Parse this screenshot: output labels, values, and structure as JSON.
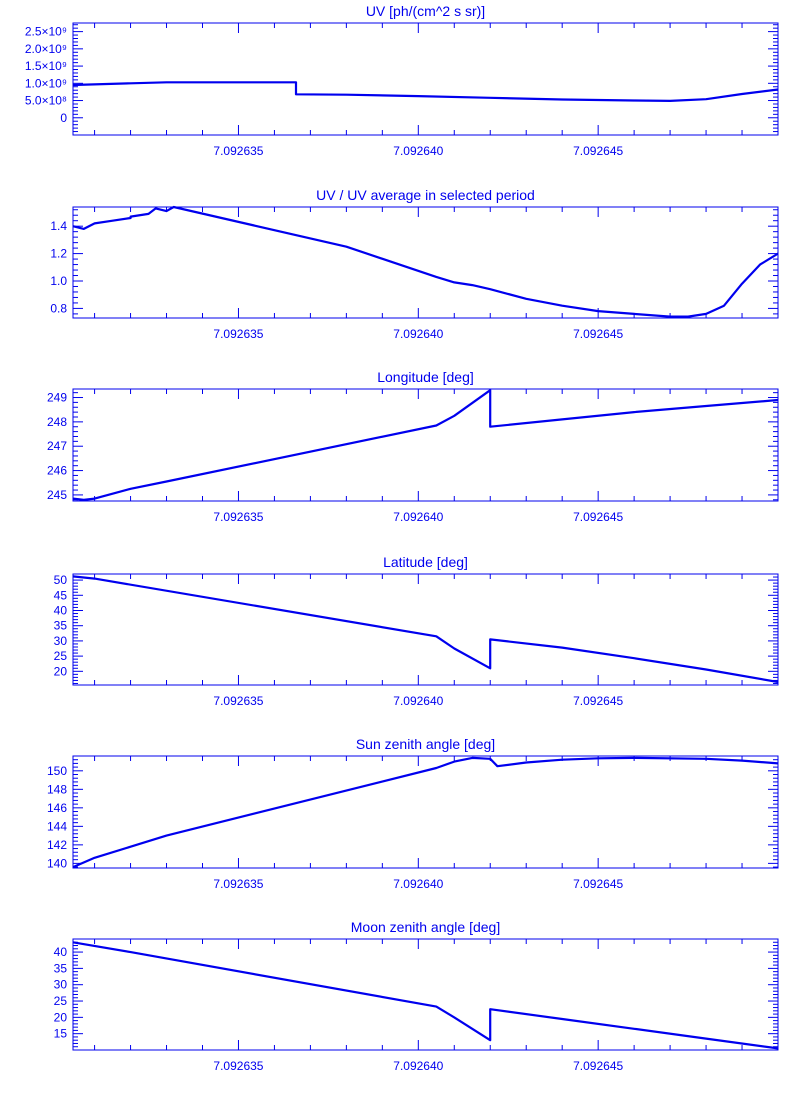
{
  "style": {
    "color": "#0000ee",
    "background": "#ffffff"
  },
  "chart_data": [
    {
      "type": "line",
      "title": "UV [ph/(cm^2 s sr)]",
      "xlim": [
        7.0926304,
        7.09265
      ],
      "ylim": [
        -500000000.0,
        2750000000.0
      ],
      "xticks": [
        7.092635,
        7.09264,
        7.092645
      ],
      "xtick_labels": [
        "7.092635",
        "7.092640",
        "7.092645"
      ],
      "yticks": [
        0,
        500000000.0,
        1000000000.0,
        1500000000.0,
        2000000000.0,
        2500000000.0
      ],
      "ytick_labels": [
        "0",
        "5.0×10⁸",
        "1.0×10⁹",
        "1.5×10⁹",
        "2.0×10⁹",
        "2.5×10⁹"
      ],
      "x": [
        7.0926304,
        7.092632,
        7.092633,
        7.0926366,
        7.0926366,
        7.092638,
        7.09264,
        7.092642,
        7.092644,
        7.092646,
        7.092647,
        7.092648,
        7.092649,
        7.09265
      ],
      "y": [
        950000000.0,
        1000000000.0,
        1030000000.0,
        1030000000.0,
        680000000.0,
        670000000.0,
        630000000.0,
        580000000.0,
        530000000.0,
        500000000.0,
        490000000.0,
        540000000.0,
        690000000.0,
        820000000.0
      ]
    },
    {
      "type": "line",
      "title": "UV / UV average in selected period",
      "xlim": [
        7.0926304,
        7.09265
      ],
      "ylim": [
        0.73,
        1.54
      ],
      "xticks": [
        7.092635,
        7.09264,
        7.092645
      ],
      "xtick_labels": [
        "7.092635",
        "7.092640",
        "7.092645"
      ],
      "yticks": [
        0.8,
        1.0,
        1.2,
        1.4
      ],
      "ytick_labels": [
        "0.8",
        "1.0",
        "1.2",
        "1.4"
      ],
      "x": [
        7.0926304,
        7.0926307,
        7.092631,
        7.0926315,
        7.092632,
        7.092632,
        7.0926325,
        7.0926327,
        7.092633,
        7.0926332,
        7.092638,
        7.0926405,
        7.092641,
        7.0926415,
        7.092642,
        7.092643,
        7.092644,
        7.092645,
        7.092646,
        7.092647,
        7.0926475,
        7.092648,
        7.0926485,
        7.092649,
        7.0926495,
        7.09265
      ],
      "y": [
        1.4,
        1.38,
        1.42,
        1.44,
        1.46,
        1.47,
        1.49,
        1.53,
        1.51,
        1.54,
        1.25,
        1.03,
        0.99,
        0.97,
        0.94,
        0.87,
        0.82,
        0.78,
        0.76,
        0.74,
        0.74,
        0.76,
        0.82,
        0.98,
        1.12,
        1.2
      ]
    },
    {
      "type": "line",
      "title": "Longitude [deg]",
      "xlim": [
        7.0926304,
        7.09265
      ],
      "ylim": [
        244.75,
        249.35
      ],
      "xticks": [
        7.092635,
        7.09264,
        7.092645
      ],
      "xtick_labels": [
        "7.092635",
        "7.092640",
        "7.092645"
      ],
      "yticks": [
        245,
        246,
        247,
        248,
        249
      ],
      "ytick_labels": [
        "245",
        "246",
        "247",
        "248",
        "249"
      ],
      "x": [
        7.0926304,
        7.0926307,
        7.092631,
        7.0926315,
        7.092632,
        7.092633,
        7.0926405,
        7.092641,
        7.092642,
        7.092642,
        7.092644,
        7.092646,
        7.092648,
        7.09265
      ],
      "y": [
        244.85,
        244.8,
        244.85,
        245.05,
        245.25,
        245.55,
        247.85,
        248.25,
        249.3,
        247.8,
        248.1,
        248.4,
        248.65,
        248.9
      ]
    },
    {
      "type": "line",
      "title": "Latitude [deg]",
      "xlim": [
        7.0926304,
        7.09265
      ],
      "ylim": [
        15.5,
        52
      ],
      "xticks": [
        7.092635,
        7.09264,
        7.092645
      ],
      "xtick_labels": [
        "7.092635",
        "7.092640",
        "7.092645"
      ],
      "yticks": [
        20,
        25,
        30,
        35,
        40,
        45,
        50
      ],
      "ytick_labels": [
        "20",
        "25",
        "30",
        "35",
        "40",
        "45",
        "50"
      ],
      "x": [
        7.0926304,
        7.092631,
        7.0926405,
        7.092641,
        7.092642,
        7.092642,
        7.092644,
        7.092646,
        7.092648,
        7.09265
      ],
      "y": [
        51.2,
        50.5,
        31.5,
        27.5,
        21.0,
        30.5,
        27.8,
        24.3,
        20.6,
        16.5
      ]
    },
    {
      "type": "line",
      "title": "Sun zenith angle [deg]",
      "xlim": [
        7.0926304,
        7.09265
      ],
      "ylim": [
        139.5,
        151.6
      ],
      "xticks": [
        7.092635,
        7.09264,
        7.092645
      ],
      "xtick_labels": [
        "7.092635",
        "7.092640",
        "7.092645"
      ],
      "yticks": [
        140,
        142,
        144,
        146,
        148,
        150
      ],
      "ytick_labels": [
        "140",
        "142",
        "144",
        "146",
        "148",
        "150"
      ],
      "x": [
        7.0926304,
        7.092631,
        7.092632,
        7.092633,
        7.0926405,
        7.092641,
        7.0926415,
        7.092642,
        7.0926422,
        7.092643,
        7.092644,
        7.092645,
        7.092646,
        7.092648,
        7.092649,
        7.09265
      ],
      "y": [
        139.6,
        140.6,
        141.8,
        143.0,
        150.3,
        151.0,
        151.4,
        151.3,
        150.5,
        150.9,
        151.2,
        151.35,
        151.4,
        151.3,
        151.1,
        150.8
      ]
    },
    {
      "type": "line",
      "title": "Moon zenith angle [deg]",
      "xlim": [
        7.0926304,
        7.09265
      ],
      "ylim": [
        10,
        44
      ],
      "xticks": [
        7.092635,
        7.09264,
        7.092645
      ],
      "xtick_labels": [
        "7.092635",
        "7.092640",
        "7.092645"
      ],
      "yticks": [
        15,
        20,
        25,
        30,
        35,
        40
      ],
      "ytick_labels": [
        "15",
        "20",
        "25",
        "30",
        "35",
        "40"
      ],
      "x": [
        7.0926304,
        7.092632,
        7.0926405,
        7.092641,
        7.092642,
        7.092642,
        7.092644,
        7.092646,
        7.092648,
        7.09265
      ],
      "y": [
        43.0,
        40.0,
        23.3,
        20.0,
        13.0,
        22.5,
        19.5,
        16.5,
        13.5,
        10.5
      ]
    }
  ]
}
